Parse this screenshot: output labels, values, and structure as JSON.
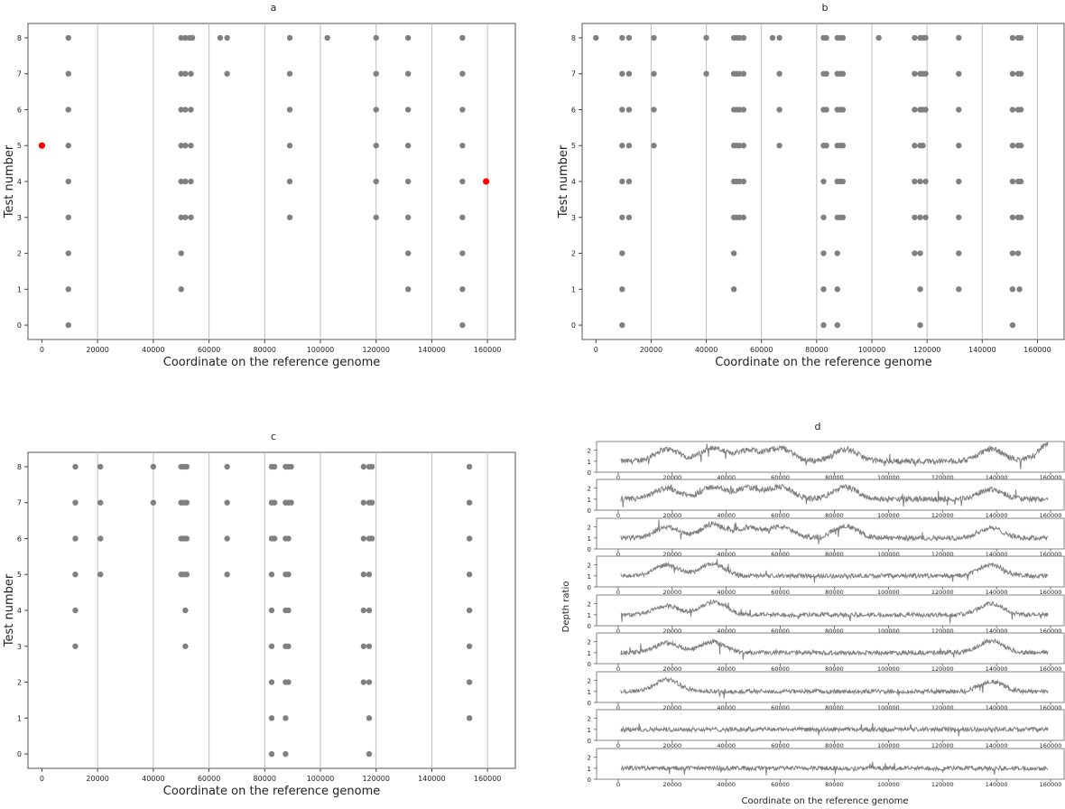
{
  "chart_data": [
    {
      "id": "a",
      "type": "scatter",
      "title": "a",
      "xlabel": "Coordinate on the reference genome",
      "ylabel": "Test number",
      "xlim": [
        -5000,
        170000
      ],
      "ylim": [
        -0.4,
        8.4
      ],
      "xticks": [
        0,
        20000,
        40000,
        60000,
        80000,
        100000,
        120000,
        140000,
        160000
      ],
      "yticks": [
        0,
        1,
        2,
        3,
        4,
        5,
        6,
        7,
        8
      ],
      "vlines": [
        20000,
        40000,
        60000,
        80000,
        100000,
        120000,
        140000,
        160000
      ],
      "point_color": "#808080",
      "highlight_color": "#ff0000",
      "rows": [
        {
          "y": 8,
          "x": [
            9500,
            50000,
            51500,
            53000,
            54000,
            64000,
            66500,
            89000,
            102500,
            120000,
            131500,
            151000
          ]
        },
        {
          "y": 7,
          "x": [
            9500,
            50000,
            51500,
            53500,
            66500,
            89000,
            120000,
            131500,
            151000
          ]
        },
        {
          "y": 6,
          "x": [
            9500,
            50000,
            51500,
            53500,
            89000,
            120000,
            131500,
            151000
          ]
        },
        {
          "y": 5,
          "x": [
            9500,
            50000,
            51500,
            53500,
            89000,
            120000,
            131500,
            151000
          ]
        },
        {
          "y": 4,
          "x": [
            9500,
            50000,
            51500,
            53500,
            89000,
            120000,
            131500,
            151000
          ]
        },
        {
          "y": 3,
          "x": [
            9500,
            50000,
            51500,
            53500,
            89000,
            120000,
            131500,
            151000
          ]
        },
        {
          "y": 2,
          "x": [
            9500,
            50000,
            131500,
            151000
          ]
        },
        {
          "y": 1,
          "x": [
            9500,
            50000,
            131500,
            151000
          ]
        },
        {
          "y": 0,
          "x": [
            9500,
            151000
          ]
        }
      ],
      "highlights": [
        {
          "x": 0,
          "y": 5
        },
        {
          "x": 159500,
          "y": 4
        }
      ]
    },
    {
      "id": "b",
      "type": "scatter",
      "title": "b",
      "xlabel": "Coordinate on the reference genome",
      "ylabel": "Test number",
      "xlim": [
        -5000,
        170000
      ],
      "ylim": [
        -0.4,
        8.4
      ],
      "xticks": [
        0,
        20000,
        40000,
        60000,
        80000,
        100000,
        120000,
        140000,
        160000
      ],
      "yticks": [
        0,
        1,
        2,
        3,
        4,
        5,
        6,
        7,
        8
      ],
      "vlines": [
        20000,
        40000,
        60000,
        80000,
        100000,
        120000,
        140000,
        160000
      ],
      "point_color": "#808080",
      "rows": [
        {
          "y": 8,
          "x": [
            0,
            9500,
            12000,
            21000,
            40000,
            50000,
            51000,
            52000,
            53500,
            64000,
            66500,
            82500,
            83500,
            87500,
            88500,
            89500,
            102500,
            115500,
            117500,
            118500,
            119500,
            131500,
            151000,
            153000,
            154000
          ]
        },
        {
          "y": 7,
          "x": [
            9500,
            12000,
            21000,
            40000,
            50000,
            51000,
            52000,
            53500,
            66500,
            82500,
            83500,
            87500,
            88500,
            89500,
            115500,
            117500,
            118500,
            119500,
            131500,
            151000,
            153000,
            154000
          ]
        },
        {
          "y": 6,
          "x": [
            9500,
            12000,
            21000,
            50000,
            51000,
            52000,
            53500,
            66500,
            82500,
            83500,
            87500,
            88500,
            89500,
            115500,
            117500,
            118500,
            119500,
            131500,
            151000,
            153000,
            154000
          ]
        },
        {
          "y": 5,
          "x": [
            9500,
            12000,
            21000,
            50000,
            51000,
            52000,
            53500,
            66500,
            82500,
            83500,
            87500,
            88500,
            89500,
            115500,
            117500,
            118500,
            131500,
            151000,
            153000,
            154000
          ]
        },
        {
          "y": 4,
          "x": [
            9500,
            12000,
            50000,
            51000,
            52000,
            53500,
            82500,
            87500,
            88500,
            89500,
            115500,
            117500,
            119500,
            131500,
            151000,
            153000,
            154000
          ]
        },
        {
          "y": 3,
          "x": [
            9500,
            12000,
            50000,
            51000,
            52000,
            53500,
            82500,
            87500,
            88500,
            89500,
            115500,
            117500,
            119500,
            131500,
            151000,
            153000,
            154000
          ]
        },
        {
          "y": 2,
          "x": [
            9500,
            50000,
            82500,
            87500,
            115500,
            117500,
            131500,
            151000,
            153000
          ]
        },
        {
          "y": 1,
          "x": [
            9500,
            50000,
            82500,
            87500,
            117500,
            131500,
            151000,
            153500
          ]
        },
        {
          "y": 0,
          "x": [
            9500,
            82500,
            87500,
            117500,
            151000
          ]
        }
      ]
    },
    {
      "id": "c",
      "type": "scatter",
      "title": "c",
      "xlabel": "Coordinate on the reference genome",
      "ylabel": "Test number",
      "xlim": [
        -5000,
        170000
      ],
      "ylim": [
        -0.4,
        8.4
      ],
      "xticks": [
        0,
        20000,
        40000,
        60000,
        80000,
        100000,
        120000,
        140000,
        160000
      ],
      "yticks": [
        0,
        1,
        2,
        3,
        4,
        5,
        6,
        7,
        8
      ],
      "vlines": [
        20000,
        40000,
        60000,
        80000,
        100000,
        120000,
        140000,
        160000
      ],
      "point_color": "#808080",
      "rows": [
        {
          "y": 8,
          "x": [
            12000,
            21000,
            40000,
            50000,
            51000,
            52000,
            66500,
            82500,
            83500,
            87500,
            88500,
            89500,
            115500,
            117500,
            118500,
            153500
          ]
        },
        {
          "y": 7,
          "x": [
            12000,
            21000,
            40000,
            50000,
            51000,
            52000,
            66500,
            82500,
            83500,
            87500,
            88500,
            89500,
            115500,
            117500,
            118500,
            153500
          ]
        },
        {
          "y": 6,
          "x": [
            12000,
            21000,
            50000,
            51000,
            52000,
            66500,
            82500,
            83500,
            87500,
            88500,
            115500,
            117500,
            118500,
            153500
          ]
        },
        {
          "y": 5,
          "x": [
            12000,
            21000,
            50000,
            51000,
            52000,
            66500,
            82500,
            87500,
            88500,
            115500,
            117500,
            153500
          ]
        },
        {
          "y": 4,
          "x": [
            12000,
            51500,
            82500,
            87500,
            88500,
            115500,
            117500,
            153500
          ]
        },
        {
          "y": 3,
          "x": [
            12000,
            51500,
            82500,
            87500,
            88500,
            115500,
            117500,
            153500
          ]
        },
        {
          "y": 2,
          "x": [
            82500,
            87500,
            88500,
            115500,
            117500,
            153500
          ]
        },
        {
          "y": 1,
          "x": [
            82500,
            87500,
            117500,
            153500
          ]
        },
        {
          "y": 0,
          "x": [
            82500,
            87500,
            117500
          ]
        }
      ]
    },
    {
      "id": "d",
      "type": "line",
      "title": "d",
      "xlabel": "Coordinate on the reference genome",
      "ylabel": "Depth ratio",
      "xlim": [
        -8000,
        165000
      ],
      "ylim": [
        0,
        2.8
      ],
      "xticks": [
        0,
        20000,
        40000,
        60000,
        80000,
        100000,
        120000,
        140000,
        160000
      ],
      "yticks": [
        0,
        1,
        2
      ],
      "line_color": "#808080",
      "n_points": 800,
      "panels": [
        {
          "peaks": [
            [
              18000,
              1.1
            ],
            [
              35000,
              1.2
            ],
            [
              48000,
              1.0
            ],
            [
              60000,
              1.2
            ],
            [
              84000,
              1.1
            ],
            [
              138000,
              1.1
            ],
            [
              160000,
              1.6
            ]
          ],
          "noise": 0.5
        },
        {
          "peaks": [
            [
              18000,
              1.0
            ],
            [
              35000,
              1.1
            ],
            [
              48000,
              1.0
            ],
            [
              60000,
              1.1
            ],
            [
              84000,
              1.1
            ],
            [
              138000,
              0.9
            ]
          ],
          "noise": 0.5
        },
        {
          "peaks": [
            [
              18000,
              1.0
            ],
            [
              35000,
              1.2
            ],
            [
              48000,
              0.9
            ],
            [
              60000,
              1.0
            ],
            [
              84000,
              1.1
            ],
            [
              138000,
              0.9
            ]
          ],
          "noise": 0.45
        },
        {
          "peaks": [
            [
              18000,
              1.0
            ],
            [
              35000,
              1.1
            ],
            [
              138000,
              1.0
            ]
          ],
          "noise": 0.4
        },
        {
          "peaks": [
            [
              18000,
              0.8
            ],
            [
              35000,
              1.2
            ],
            [
              138000,
              1.0
            ]
          ],
          "noise": 0.4
        },
        {
          "peaks": [
            [
              18000,
              0.9
            ],
            [
              35000,
              1.0
            ],
            [
              138000,
              1.1
            ]
          ],
          "noise": 0.4
        },
        {
          "peaks": [
            [
              18000,
              1.1
            ],
            [
              138000,
              0.9
            ]
          ],
          "noise": 0.4
        },
        {
          "peaks": [],
          "noise": 0.4
        },
        {
          "peaks": [],
          "noise": 0.4
        }
      ]
    }
  ]
}
